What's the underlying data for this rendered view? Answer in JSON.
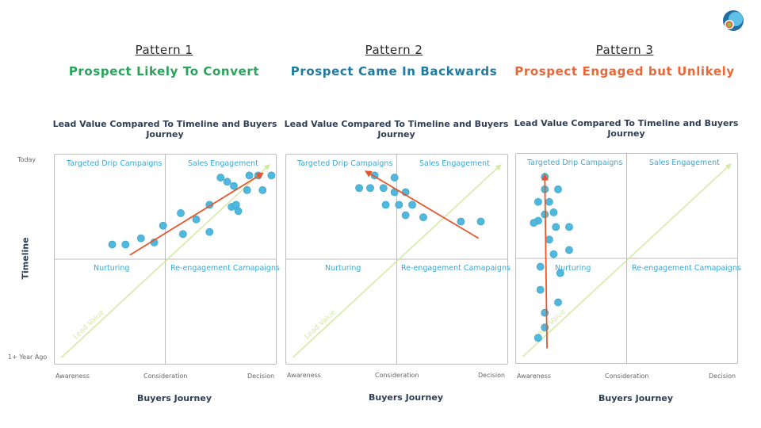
{
  "patterns": [
    {
      "label": "Pattern 1",
      "heading": "Prospect Likely To Convert",
      "color": "#27a35a"
    },
    {
      "label": "Pattern 2",
      "heading": "Prospect Came In Backwards",
      "color": "#1f7aa0"
    },
    {
      "label": "Pattern 3",
      "heading": "Prospect Engaged but Unlikely",
      "color": "#e8673a"
    }
  ],
  "axes": {
    "y_top": "Today",
    "y_bottom": "1+ Year Ago",
    "y_title": "Timeline",
    "x_left": "Awareness",
    "x_mid": "Consideration",
    "x_right": "Decision",
    "x_title": "Buyers Journey"
  },
  "colors": {
    "point": "#4fb8dc",
    "arrow": "#e4572e",
    "diagonal": "#d4e8a0",
    "quadrant_text": "#3aa8d4"
  },
  "chart_data": [
    {
      "type": "scatter",
      "title": "Lead Value Compared To Timeline and Buyers Journey",
      "quadrants": {
        "top_left": "Targeted Drip Campaigns",
        "top_right": "Sales Engagement",
        "bottom_left": "Nurturing",
        "bottom_right": "Re-engagement Camapaigns"
      },
      "diagonal_label": "Lead Value",
      "xlim": [
        0,
        100
      ],
      "ylim": [
        0,
        100
      ],
      "points": [
        [
          26,
          57
        ],
        [
          32,
          57
        ],
        [
          39,
          60
        ],
        [
          45,
          58
        ],
        [
          49,
          66
        ],
        [
          57,
          72
        ],
        [
          58,
          62
        ],
        [
          64,
          69
        ],
        [
          70,
          63
        ],
        [
          70,
          76
        ],
        [
          75,
          89
        ],
        [
          78,
          87
        ],
        [
          80,
          75
        ],
        [
          82,
          76
        ],
        [
          81,
          85
        ],
        [
          83,
          73
        ],
        [
          87,
          83
        ],
        [
          88,
          90
        ],
        [
          92,
          90
        ],
        [
          94,
          83
        ],
        [
          98,
          90
        ]
      ],
      "arrow": {
        "from": [
          34,
          52
        ],
        "to": [
          94,
          91
        ]
      }
    },
    {
      "type": "scatter",
      "title": "Lead Value Compared To Timeline and Buyers Journey",
      "quadrants": {
        "top_left": "Targeted Drip Campaigns",
        "top_right": "Sales Engagement",
        "bottom_left": "Nurturing",
        "bottom_right": "Re-engagement Camapaigns"
      },
      "diagonal_label": "Lead Value",
      "xlim": [
        0,
        100
      ],
      "ylim": [
        0,
        100
      ],
      "points": [
        [
          33,
          84
        ],
        [
          38,
          84
        ],
        [
          40,
          90
        ],
        [
          44,
          84
        ],
        [
          49,
          89
        ],
        [
          49,
          82
        ],
        [
          45,
          76
        ],
        [
          51,
          76
        ],
        [
          54,
          82
        ],
        [
          57,
          76
        ],
        [
          54,
          71
        ],
        [
          62,
          70
        ],
        [
          79,
          68
        ],
        [
          88,
          68
        ]
      ],
      "arrow": {
        "from": [
          87,
          60
        ],
        "to": [
          36,
          92
        ]
      }
    },
    {
      "type": "scatter",
      "title": "Lead Value Compared To Timeline and Buyers Journey",
      "quadrants": {
        "top_left": "Targeted Drip Campaigns",
        "top_right": "Sales Engagement",
        "bottom_left": "Nurturing",
        "bottom_right": "Re-engagement Camapaigns"
      },
      "diagonal_label": "Lead Value",
      "xlim": [
        0,
        100
      ],
      "ylim": [
        0,
        100
      ],
      "points": [
        [
          13,
          89
        ],
        [
          13,
          83
        ],
        [
          19,
          83
        ],
        [
          15,
          77
        ],
        [
          10,
          77
        ],
        [
          17,
          72
        ],
        [
          13,
          71
        ],
        [
          10,
          68
        ],
        [
          8,
          67
        ],
        [
          18,
          65
        ],
        [
          24,
          65
        ],
        [
          15,
          59
        ],
        [
          24,
          54
        ],
        [
          17,
          52
        ],
        [
          11,
          46
        ],
        [
          20,
          43
        ],
        [
          11,
          35
        ],
        [
          19,
          29
        ],
        [
          13,
          24
        ],
        [
          13,
          17
        ],
        [
          10,
          12
        ]
      ],
      "arrow": {
        "from": [
          14,
          7
        ],
        "to": [
          13,
          90
        ]
      }
    }
  ]
}
